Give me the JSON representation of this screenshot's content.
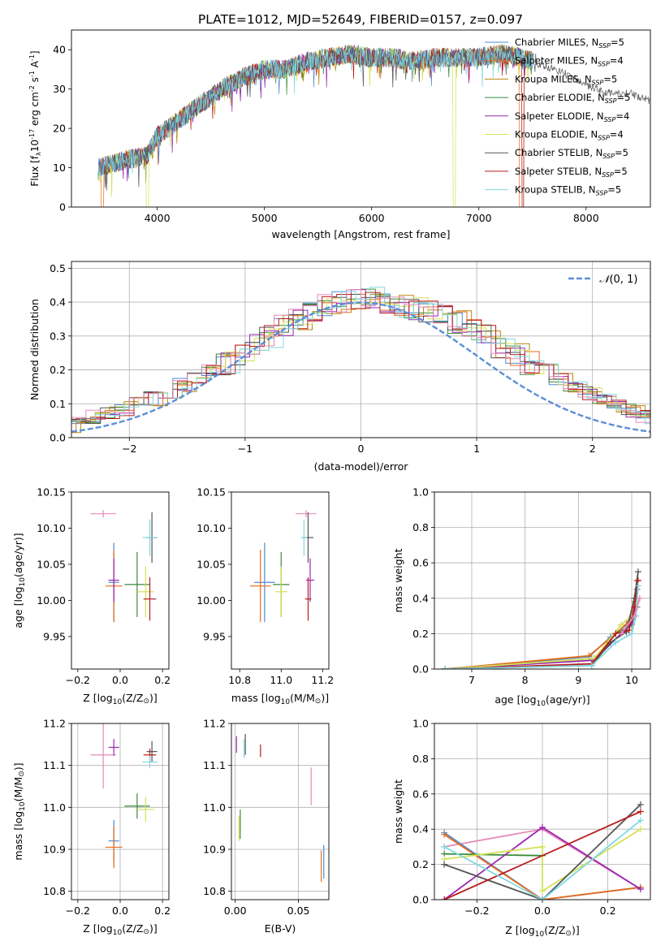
{
  "title": "PLATE=1012, MJD=52649, FIBERID=0157, z=0.097",
  "colors": {
    "Chabrier MILES": "#4e8bd0",
    "Salpeter MILES": "#e76b1c",
    "Kroupa MILES": "#b8860b",
    "Chabrier ELODIE": "#3a8a3a",
    "Salpeter ELODIE": "#9b27b0",
    "Kroupa ELODIE": "#d4e157",
    "Chabrier STELIB": "#555555",
    "Salpeter STELIB": "#b71c1c",
    "Kroupa STELIB": "#80d8e0",
    "pink": "#e58ab8",
    "gaussian": "#5b8fd6"
  },
  "chart_data": [
    {
      "id": "spectrum",
      "type": "line",
      "xlabel": "wavelength [Angstrom, rest frame]",
      "ylabel": "Flux [f",
      "ylabel_sub": "λ",
      "ylabel_rest": "10",
      "ylabel_exp": "-17",
      "ylabel_units": " erg cm",
      "ylabel_units_exp": "-2",
      "ylabel_s": " s",
      "ylabel_s_exp": "-1",
      "ylabel_A": " A",
      "ylabel_A_exp": "-1",
      "ylabel_close": "]",
      "xlim": [
        3200,
        8600
      ],
      "ylim": [
        0,
        45
      ],
      "xticks": [
        4000,
        5000,
        6000,
        7000,
        8000
      ],
      "yticks": [
        0,
        10,
        20,
        30,
        40
      ],
      "legend_position": "right",
      "legend": [
        {
          "name": "Chabrier MILES, N",
          "sub": "SSP",
          "val": "=5"
        },
        {
          "name": "Salpeter MILES, N",
          "sub": "SSP",
          "val": "=4"
        },
        {
          "name": "Kroupa MILES, N",
          "sub": "SSP",
          "val": "=5"
        },
        {
          "name": "Chabrier ELODIE, N",
          "sub": "SSP",
          "val": "=5"
        },
        {
          "name": "Salpeter ELODIE, N",
          "sub": "SSP",
          "val": "=4"
        },
        {
          "name": "Kroupa ELODIE, N",
          "sub": "SSP",
          "val": "=4"
        },
        {
          "name": "Chabrier STELIB, N",
          "sub": "SSP",
          "val": "=5"
        },
        {
          "name": "Salpeter STELIB, N",
          "sub": "SSP",
          "val": "=5"
        },
        {
          "name": "Kroupa STELIB, N",
          "sub": "SSP",
          "val": "=5"
        }
      ],
      "continuum": [
        [
          3450,
          10
        ],
        [
          3700,
          12
        ],
        [
          3900,
          13
        ],
        [
          4000,
          18
        ],
        [
          4200,
          22
        ],
        [
          4400,
          26
        ],
        [
          4600,
          30
        ],
        [
          4800,
          33
        ],
        [
          5000,
          35
        ],
        [
          5200,
          35
        ],
        [
          5400,
          37
        ],
        [
          5600,
          38
        ],
        [
          5800,
          39
        ],
        [
          6000,
          38
        ],
        [
          6200,
          38
        ],
        [
          6400,
          37
        ],
        [
          6600,
          38
        ],
        [
          6800,
          38
        ],
        [
          7000,
          38
        ],
        [
          7200,
          39
        ],
        [
          7400,
          38
        ],
        [
          7500,
          37
        ],
        [
          7600,
          36
        ],
        [
          7800,
          34
        ],
        [
          8000,
          31
        ],
        [
          8200,
          29
        ],
        [
          8400,
          29
        ],
        [
          8600,
          27
        ]
      ]
    },
    {
      "id": "residuals",
      "type": "histogram",
      "xlabel": "(data-model)/error",
      "ylabel": "Normed distribution",
      "xlim": [
        -2.5,
        2.5
      ],
      "ylim": [
        0,
        0.52
      ],
      "xticks": [
        -2,
        -1,
        0,
        1,
        2
      ],
      "yticks": [
        0.0,
        0.1,
        0.2,
        0.3,
        0.4,
        0.5
      ],
      "grid": true,
      "legend_position": "top-right",
      "legend": [
        {
          "name": "N(0, 1)"
        }
      ],
      "legend_text": "(0, 1)",
      "legend_symbol": "𝒩",
      "bin_width": 0.125,
      "series_base": [
        0.028,
        0.035,
        0.045,
        0.06,
        0.07,
        0.085,
        0.1,
        0.115,
        0.135,
        0.155,
        0.175,
        0.2,
        0.22,
        0.245,
        0.27,
        0.3,
        0.33,
        0.35,
        0.37,
        0.39,
        0.4,
        0.41,
        0.41,
        0.4,
        0.39,
        0.38,
        0.37,
        0.36,
        0.34,
        0.32,
        0.3,
        0.27,
        0.245,
        0.22,
        0.2,
        0.17,
        0.15,
        0.13,
        0.11,
        0.095,
        0.08,
        0.06,
        0.05,
        0.04
      ]
    },
    {
      "id": "age-vs-Z",
      "type": "scatter",
      "xlabel": "Z [log",
      "xlabel_sub": "10",
      "xlabel_rest": "(Z/Z",
      "xlabel_sym": "⊙",
      "xlabel_close": ")]",
      "ylabel": "age  [log",
      "ylabel_sub": "10",
      "ylabel_rest": "(age/yr)]",
      "xlim": [
        -0.23,
        0.23
      ],
      "ylim": [
        9.905,
        10.15
      ],
      "xticks": [
        -0.2,
        0.0,
        0.2
      ],
      "yticks": [
        9.95,
        10.0,
        10.05,
        10.1,
        10.15
      ],
      "points": [
        {
          "s": "pink",
          "x": -0.08,
          "xe": 0.12,
          "y": 10.12,
          "ye": 0.01
        },
        {
          "s": "Chabrier MILES",
          "x": -0.03,
          "xe": 0.05,
          "y": 10.025,
          "ye": 0.11
        },
        {
          "s": "Salpeter MILES",
          "x": -0.03,
          "xe": 0.08,
          "y": 10.02,
          "ye": 0.1
        },
        {
          "s": "Chabrier ELODIE",
          "x": 0.08,
          "xe": 0.12,
          "y": 10.022,
          "ye": 0.09
        },
        {
          "s": "Salpeter ELODIE",
          "x": -0.03,
          "xe": 0.05,
          "y": 10.028,
          "ye": 0.06
        },
        {
          "s": "Kroupa ELODIE",
          "x": 0.12,
          "xe": 0.08,
          "y": 10.012,
          "ye": 0.07
        },
        {
          "s": "Chabrier STELIB",
          "x": 0.15,
          "xe": 0.05,
          "y": 10.087,
          "ye": 0.07
        },
        {
          "s": "Salpeter STELIB",
          "x": 0.14,
          "xe": 0.06,
          "y": 10.002,
          "ye": 0.06
        },
        {
          "s": "Kroupa STELIB",
          "x": 0.14,
          "xe": 0.07,
          "y": 10.087,
          "ye": 0.05
        }
      ]
    },
    {
      "id": "age-vs-mass",
      "type": "scatter",
      "xlabel": "mass [log",
      "xlabel_sub": "10",
      "xlabel_rest": "(M/M",
      "xlabel_sym": "⊙",
      "xlabel_close": ")]",
      "xlim": [
        10.76,
        11.23
      ],
      "ylim": [
        9.905,
        10.15
      ],
      "xticks": [
        10.8,
        11.0,
        11.2
      ],
      "yticks": [
        9.95,
        10.0,
        10.05,
        10.1,
        10.15
      ],
      "points": [
        {
          "s": "pink",
          "x": 11.12,
          "xe": 0.1,
          "y": 10.12,
          "ye": 0.01
        },
        {
          "s": "Chabrier MILES",
          "x": 10.92,
          "xe": 0.1,
          "y": 10.025,
          "ye": 0.11
        },
        {
          "s": "Salpeter MILES",
          "x": 10.9,
          "xe": 0.1,
          "y": 10.02,
          "ye": 0.1
        },
        {
          "s": "Chabrier ELODIE",
          "x": 11.0,
          "xe": 0.08,
          "y": 10.022,
          "ye": 0.09
        },
        {
          "s": "Salpeter ELODIE",
          "x": 11.14,
          "xe": 0.04,
          "y": 10.028,
          "ye": 0.06
        },
        {
          "s": "Kroupa ELODIE",
          "x": 11.0,
          "xe": 0.06,
          "y": 10.012,
          "ye": 0.07
        },
        {
          "s": "Chabrier STELIB",
          "x": 11.13,
          "xe": 0.05,
          "y": 10.087,
          "ye": 0.07
        },
        {
          "s": "Salpeter STELIB",
          "x": 11.13,
          "xe": 0.03,
          "y": 10.002,
          "ye": 0.06
        },
        {
          "s": "Kroupa STELIB",
          "x": 11.11,
          "xe": 0.03,
          "y": 10.087,
          "ye": 0.05
        }
      ]
    },
    {
      "id": "weight-vs-age",
      "type": "line",
      "xlabel": "age  [log",
      "xlabel_sub": "10",
      "xlabel_rest": "(age/yr)]",
      "ylabel": "mass weight",
      "xlim": [
        6.3,
        10.35
      ],
      "ylim": [
        0,
        1.0
      ],
      "xticks": [
        7,
        8,
        9,
        10
      ],
      "yticks": [
        0.0,
        0.2,
        0.4,
        0.6,
        0.8,
        1.0
      ],
      "grid": true,
      "series": [
        {
          "s": "Chabrier MILES",
          "x": [
            6.5,
            9.2,
            9.6,
            9.9,
            10.0,
            10.1
          ],
          "y": [
            0.0,
            0.07,
            0.18,
            0.25,
            0.3,
            0.45
          ]
        },
        {
          "s": "Salpeter MILES",
          "x": [
            6.5,
            9.2,
            9.7,
            9.95,
            10.05,
            10.1
          ],
          "y": [
            0.0,
            0.075,
            0.2,
            0.27,
            0.38,
            0.5
          ]
        },
        {
          "s": "Chabrier ELODIE",
          "x": [
            6.5,
            9.3,
            9.7,
            10.0,
            10.1
          ],
          "y": [
            0.0,
            0.06,
            0.2,
            0.25,
            0.35
          ]
        },
        {
          "s": "Salpeter ELODIE",
          "x": [
            6.5,
            9.3,
            9.8,
            10.0,
            10.1
          ],
          "y": [
            0.0,
            0.05,
            0.2,
            0.26,
            0.4
          ]
        },
        {
          "s": "Kroupa ELODIE",
          "x": [
            6.5,
            9.3,
            9.8,
            10.0,
            10.1
          ],
          "y": [
            0.0,
            0.06,
            0.25,
            0.3,
            0.4
          ]
        },
        {
          "s": "Chabrier STELIB",
          "x": [
            6.5,
            9.25,
            9.6,
            9.9,
            10.05,
            10.12
          ],
          "y": [
            0.0,
            0.02,
            0.15,
            0.21,
            0.4,
            0.55
          ]
        },
        {
          "s": "Salpeter STELIB",
          "x": [
            6.5,
            9.25,
            9.7,
            9.95,
            10.05,
            10.12
          ],
          "y": [
            0.0,
            0.03,
            0.2,
            0.22,
            0.35,
            0.5
          ]
        },
        {
          "s": "Kroupa STELIB",
          "x": [
            6.5,
            9.25,
            9.7,
            10.0,
            10.08,
            10.12
          ],
          "y": [
            0.0,
            0.02,
            0.15,
            0.2,
            0.3,
            0.47
          ]
        },
        {
          "s": "pink",
          "x": [
            9.8,
            10.05,
            10.15
          ],
          "y": [
            0.2,
            0.3,
            0.4
          ]
        }
      ]
    },
    {
      "id": "mass-vs-Z",
      "type": "scatter",
      "xlabel": "Z [log",
      "xlabel_sub": "10",
      "xlabel_rest": "(Z/Z",
      "xlabel_sym": "⊙",
      "xlabel_close": ")]",
      "ylabel": "mass [log",
      "ylabel_sub": "10",
      "ylabel_rest": "(M/M",
      "ylabel_sym": "⊙",
      "ylabel_close": ")]",
      "xlim": [
        -0.23,
        0.23
      ],
      "ylim": [
        10.78,
        11.2
      ],
      "xticks": [
        -0.2,
        0.0,
        0.2
      ],
      "yticks": [
        10.8,
        10.9,
        11.0,
        11.1,
        11.2
      ],
      "grid": true,
      "points": [
        {
          "s": "pink",
          "x": -0.08,
          "xe": 0.12,
          "y": 11.125,
          "ye": 0.16
        },
        {
          "s": "Chabrier MILES",
          "x": -0.03,
          "xe": 0.05,
          "y": 10.92,
          "ye": 0.1
        },
        {
          "s": "Salpeter MILES",
          "x": -0.03,
          "xe": 0.08,
          "y": 10.905,
          "ye": 0.1
        },
        {
          "s": "Chabrier ELODIE",
          "x": 0.08,
          "xe": 0.12,
          "y": 11.003,
          "ye": 0.06
        },
        {
          "s": "Salpeter ELODIE",
          "x": -0.03,
          "xe": 0.05,
          "y": 11.143,
          "ye": 0.04
        },
        {
          "s": "Kroupa ELODIE",
          "x": 0.12,
          "xe": 0.08,
          "y": 10.995,
          "ye": 0.06
        },
        {
          "s": "Chabrier STELIB",
          "x": 0.15,
          "xe": 0.05,
          "y": 11.133,
          "ye": 0.05
        },
        {
          "s": "Salpeter STELIB",
          "x": 0.14,
          "xe": 0.06,
          "y": 11.125,
          "ye": 0.03
        },
        {
          "s": "Kroupa STELIB",
          "x": 0.14,
          "xe": 0.07,
          "y": 11.108,
          "ye": 0.03
        }
      ]
    },
    {
      "id": "mass-vs-ebv",
      "type": "scatter",
      "xlabel": "E(B-V)",
      "xlim": [
        -0.003,
        0.074
      ],
      "ylim": [
        10.78,
        11.2
      ],
      "xticks": [
        0.0,
        0.05
      ],
      "yticks": [
        10.8,
        10.9,
        11.0,
        11.1,
        11.2
      ],
      "grid": true,
      "points": [
        {
          "s": "pink",
          "x": 0.06,
          "y": 11.05,
          "ye": 0.09
        },
        {
          "s": "Chabrier MILES",
          "x": 0.07,
          "y": 10.87,
          "ye": 0.08
        },
        {
          "s": "Salpeter MILES",
          "x": 0.068,
          "y": 10.86,
          "ye": 0.075
        },
        {
          "s": "Chabrier ELODIE",
          "x": 0.004,
          "y": 10.96,
          "ye": 0.07
        },
        {
          "s": "Salpeter ELODIE",
          "x": 0.001,
          "y": 11.15,
          "ye": 0.04
        },
        {
          "s": "Kroupa ELODIE",
          "x": 0.003,
          "y": 10.95,
          "ye": 0.06
        },
        {
          "s": "Chabrier STELIB",
          "x": 0.008,
          "y": 11.15,
          "ye": 0.05
        },
        {
          "s": "Salpeter STELIB",
          "x": 0.02,
          "y": 11.135,
          "ye": 0.03
        },
        {
          "s": "Kroupa STELIB",
          "x": 0.007,
          "y": 11.14,
          "ye": 0.045
        }
      ]
    },
    {
      "id": "weight-vs-Z",
      "type": "line",
      "xlabel": "Z [log",
      "xlabel_sub": "10",
      "xlabel_rest": "(Z/Z",
      "xlabel_sym": "⊙",
      "xlabel_close": ")]",
      "ylabel": "mass weight",
      "xlim": [
        -0.33,
        0.33
      ],
      "ylim": [
        0,
        1.0
      ],
      "xticks": [
        -0.2,
        0.0,
        0.2
      ],
      "yticks": [
        0.0,
        0.2,
        0.4,
        0.6,
        0.8,
        1.0
      ],
      "grid": true,
      "series": [
        {
          "s": "pink",
          "x": [
            -0.3,
            0.0,
            0.3
          ],
          "y": [
            0.3,
            0.4,
            0.06
          ]
        },
        {
          "s": "Chabrier MILES",
          "x": [
            -0.3,
            0.0,
            0.3
          ],
          "y": [
            0.38,
            0.0,
            0.07
          ]
        },
        {
          "s": "Salpeter MILES",
          "x": [
            -0.3,
            0.0,
            0.3
          ],
          "y": [
            0.37,
            0.0,
            0.07
          ]
        },
        {
          "s": "Chabrier ELODIE",
          "x": [
            -0.3,
            0.0
          ],
          "y": [
            0.26,
            0.25
          ]
        },
        {
          "s": "Salpeter ELODIE",
          "x": [
            -0.3,
            0.0,
            0.3
          ],
          "y": [
            0.0,
            0.41,
            0.06
          ]
        },
        {
          "s": "Kroupa ELODIE",
          "x": [
            -0.3,
            0.0,
            0.0,
            0.3
          ],
          "y": [
            0.23,
            0.3,
            0.05,
            0.4
          ]
        },
        {
          "s": "Chabrier STELIB",
          "x": [
            -0.3,
            0.0,
            0.3
          ],
          "y": [
            0.2,
            0.0,
            0.54
          ]
        },
        {
          "s": "Salpeter STELIB",
          "x": [
            -0.3,
            0.3
          ],
          "y": [
            0.0,
            0.5
          ]
        },
        {
          "s": "Kroupa STELIB",
          "x": [
            -0.3,
            0.0,
            0.3
          ],
          "y": [
            0.3,
            0.0,
            0.45
          ]
        }
      ]
    }
  ]
}
